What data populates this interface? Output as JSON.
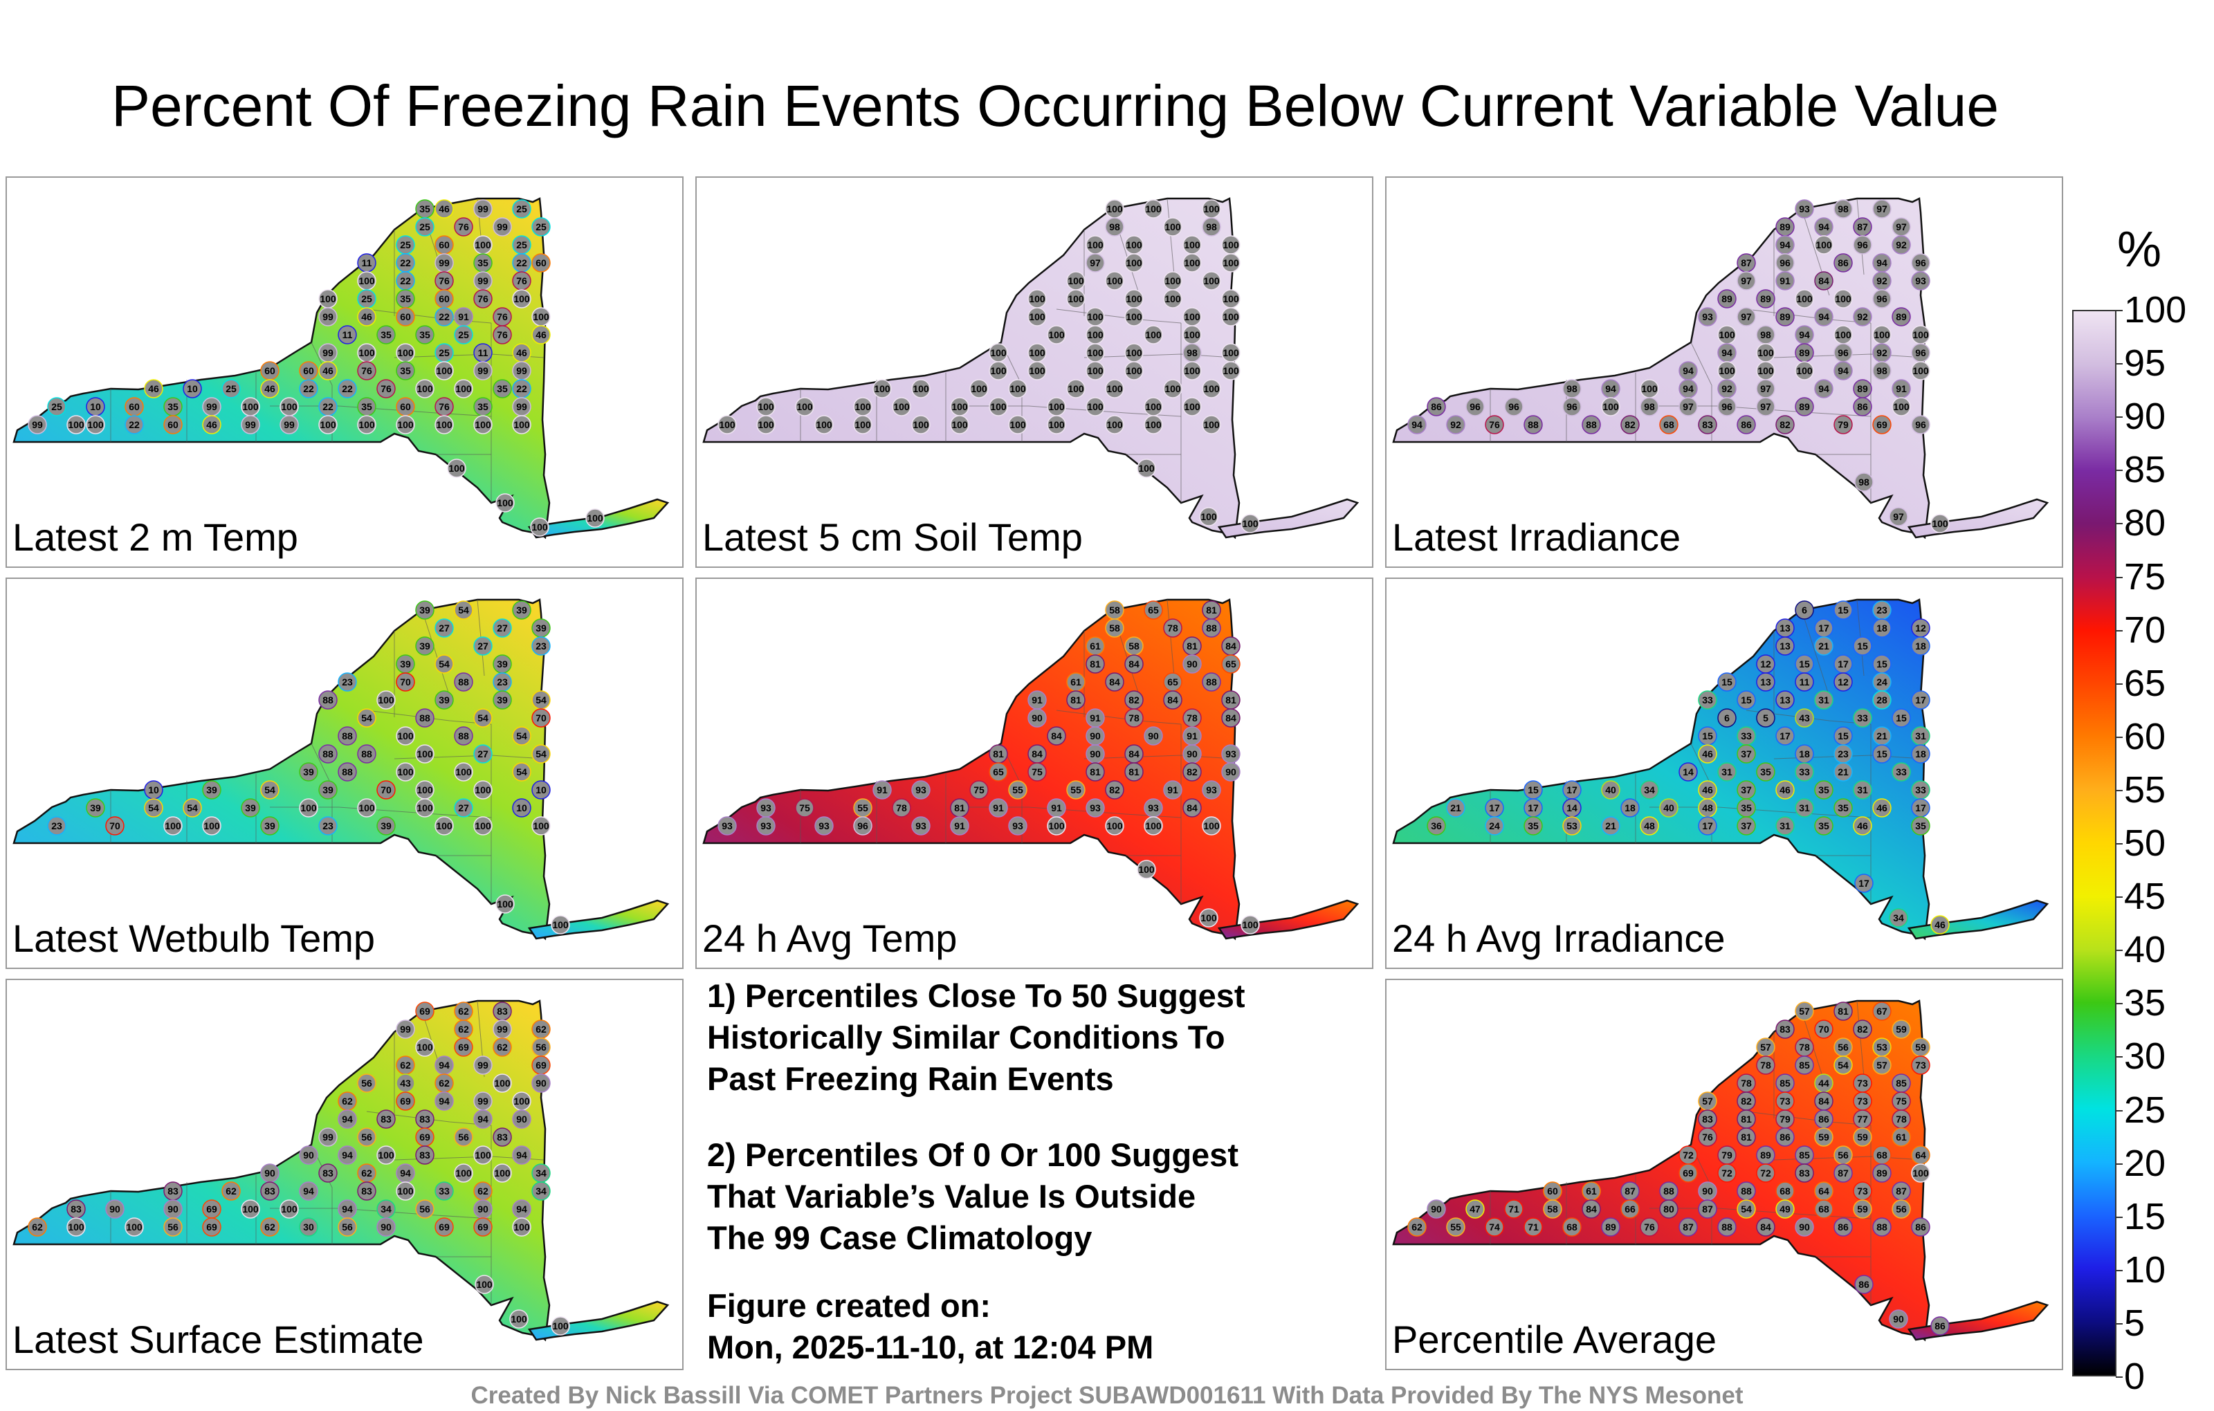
{
  "title": "Percent Of Freezing Rain Events Occurring Below Current Variable Value",
  "panels": [
    {
      "label": "Latest 2 m Temp",
      "scheme": "mixed",
      "values": [
        35,
        46,
        99,
        25,
        25,
        76,
        99,
        25,
        25,
        60,
        100,
        25,
        11,
        22,
        99,
        35,
        22,
        60,
        100,
        22,
        76,
        99,
        76,
        100,
        25,
        35,
        60,
        76,
        100,
        99,
        46,
        60,
        22,
        91,
        76,
        100,
        11,
        35,
        35,
        25,
        76,
        46,
        99,
        100,
        100,
        25,
        11,
        46,
        60,
        60,
        46,
        76,
        35,
        100,
        99,
        99,
        46,
        10,
        25,
        46,
        22,
        22,
        76,
        100,
        100,
        35,
        22,
        25,
        10,
        60,
        35,
        99,
        100,
        100,
        22,
        35,
        60,
        76,
        35,
        99,
        99,
        100,
        100,
        22,
        60,
        46,
        99,
        99,
        100,
        100,
        100,
        100,
        100,
        100,
        100,
        100,
        100,
        100
      ]
    },
    {
      "label": "Latest 5 cm Soil Temp",
      "scheme": "high",
      "values": [
        100,
        100,
        100,
        98,
        100,
        98,
        100,
        100,
        100,
        100,
        97,
        100,
        100,
        100,
        100,
        100,
        100,
        100,
        100,
        100,
        100,
        100,
        100,
        100,
        100,
        100,
        100,
        100,
        100,
        100,
        100,
        100,
        100,
        100,
        100,
        100,
        98,
        100,
        100,
        100,
        100,
        100,
        100,
        100,
        100,
        100,
        100,
        100,
        100,
        100,
        100,
        100,
        100,
        100,
        100,
        100,
        100,
        100,
        100,
        100,
        100,
        100,
        100,
        100,
        100,
        100,
        100,
        100,
        100,
        100,
        100,
        100,
        100,
        100,
        100,
        100
      ]
    },
    {
      "label": "Latest Irradiance",
      "scheme": "high",
      "values": [
        93,
        98,
        97,
        89,
        94,
        87,
        97,
        94,
        100,
        96,
        92,
        87,
        96,
        86,
        94,
        96,
        97,
        91,
        84,
        92,
        93,
        89,
        89,
        100,
        100,
        96,
        93,
        97,
        89,
        94,
        92,
        89,
        100,
        98,
        94,
        100,
        100,
        100,
        94,
        100,
        89,
        96,
        92,
        96,
        94,
        100,
        100,
        100,
        94,
        98,
        100,
        98,
        94,
        100,
        94,
        92,
        97,
        94,
        89,
        91,
        86,
        96,
        96,
        96,
        100,
        98,
        97,
        96,
        97,
        89,
        86,
        100,
        94,
        92,
        76,
        88,
        88,
        82,
        68,
        83,
        86,
        82,
        79,
        69,
        96,
        98,
        97,
        100
      ]
    },
    {
      "label": "Latest Wetbulb Temp",
      "scheme": "mixed",
      "values": [
        39,
        54,
        39,
        27,
        27,
        39,
        39,
        27,
        23,
        39,
        54,
        39,
        23,
        70,
        88,
        23,
        88,
        100,
        39,
        39,
        54,
        54,
        88,
        54,
        70,
        88,
        100,
        88,
        54,
        88,
        88,
        100,
        27,
        54,
        39,
        88,
        100,
        100,
        54,
        10,
        39,
        54,
        39,
        70,
        100,
        100,
        10,
        39,
        54,
        54,
        39,
        100,
        100,
        100,
        27,
        10,
        23,
        70,
        100,
        100,
        39,
        23,
        39,
        100,
        100,
        100,
        100,
        100
      ]
    },
    {
      "label": "24 h Avg Temp",
      "scheme": "warm",
      "values": [
        58,
        65,
        81,
        58,
        78,
        88,
        61,
        58,
        81,
        84,
        81,
        84,
        90,
        65,
        61,
        84,
        65,
        88,
        91,
        81,
        82,
        84,
        81,
        90,
        91,
        78,
        78,
        84,
        84,
        90,
        90,
        91,
        81,
        84,
        90,
        84,
        90,
        93,
        65,
        75,
        81,
        81,
        82,
        90,
        91,
        93,
        75,
        55,
        55,
        82,
        91,
        93,
        93,
        75,
        55,
        78,
        81,
        91,
        91,
        93,
        93,
        84,
        93,
        93,
        93,
        96,
        93,
        91,
        93,
        100,
        100,
        100,
        100,
        100,
        100,
        100
      ]
    },
    {
      "label": "24 h Avg Irradiance",
      "scheme": "cool",
      "values": [
        6,
        15,
        23,
        13,
        17,
        18,
        12,
        13,
        21,
        15,
        18,
        12,
        15,
        17,
        15,
        15,
        13,
        11,
        12,
        24,
        33,
        15,
        13,
        31,
        28,
        17,
        6,
        5,
        43,
        33,
        15,
        15,
        33,
        17,
        15,
        21,
        31,
        46,
        37,
        18,
        23,
        15,
        18,
        14,
        31,
        35,
        33,
        21,
        33,
        15,
        17,
        40,
        34,
        46,
        37,
        46,
        35,
        31,
        33,
        21,
        17,
        17,
        14,
        18,
        40,
        48,
        35,
        31,
        35,
        46,
        17,
        36,
        24,
        35,
        53,
        21,
        48,
        17,
        37,
        31,
        35,
        46,
        35,
        17,
        34,
        46
      ]
    },
    {
      "label": "Latest Surface Estimate",
      "scheme": "mixed",
      "values": [
        69,
        62,
        83,
        99,
        62,
        99,
        62,
        100,
        69,
        62,
        56,
        62,
        94,
        99,
        69,
        56,
        43,
        62,
        100,
        90,
        62,
        69,
        94,
        99,
        100,
        94,
        83,
        83,
        94,
        90,
        99,
        56,
        69,
        56,
        83,
        90,
        94,
        100,
        83,
        100,
        94,
        90,
        83,
        62,
        94,
        100,
        100,
        34,
        83,
        62,
        83,
        94,
        83,
        100,
        33,
        62,
        34,
        83,
        90,
        90,
        69,
        100,
        100,
        94,
        34,
        56,
        90,
        94,
        62,
        100,
        100,
        56,
        69,
        62,
        30,
        56,
        90,
        69,
        69,
        100,
        100,
        100,
        100
      ]
    },
    {
      "label": "Percentile Average",
      "scheme": "warm",
      "values": [
        57,
        81,
        67,
        83,
        70,
        82,
        59,
        57,
        78,
        56,
        53,
        59,
        78,
        85,
        54,
        57,
        73,
        78,
        85,
        44,
        73,
        85,
        57,
        82,
        73,
        84,
        73,
        75,
        83,
        81,
        79,
        86,
        77,
        78,
        76,
        81,
        86,
        59,
        59,
        61,
        72,
        79,
        89,
        85,
        56,
        68,
        64,
        69,
        72,
        72,
        83,
        87,
        89,
        100,
        60,
        61,
        87,
        88,
        90,
        88,
        68,
        64,
        73,
        87,
        90,
        47,
        71,
        58,
        84,
        66,
        80,
        87,
        54,
        49,
        68,
        59,
        56,
        62,
        55,
        74,
        71,
        68,
        89,
        76,
        87,
        88,
        84,
        90,
        86,
        88,
        86,
        86,
        90,
        86
      ]
    }
  ],
  "notes": [
    "1) Percentiles Close To 50 Suggest",
    "Historically Similar Conditions To",
    "Past Freezing Rain Events",
    "2) Percentiles Of 0 Or 100 Suggest",
    "That Variable’s Value Is Outside",
    "The 99 Case Climatology",
    "Figure created on:",
    "Mon, 2025-11-10, at 12:04 PM"
  ],
  "colorbar": {
    "unit": "%",
    "ticks": [
      "100",
      "95",
      "90",
      "85",
      "80",
      "75",
      "70",
      "65",
      "60",
      "55",
      "50",
      "45",
      "40",
      "35",
      "30",
      "25",
      "20",
      "15",
      "10",
      "5",
      "0"
    ]
  },
  "footer": "Created By Nick Bassill Via COMET Partners Project SUBAWD001611 With Data Provided By The NYS Mesonet"
}
